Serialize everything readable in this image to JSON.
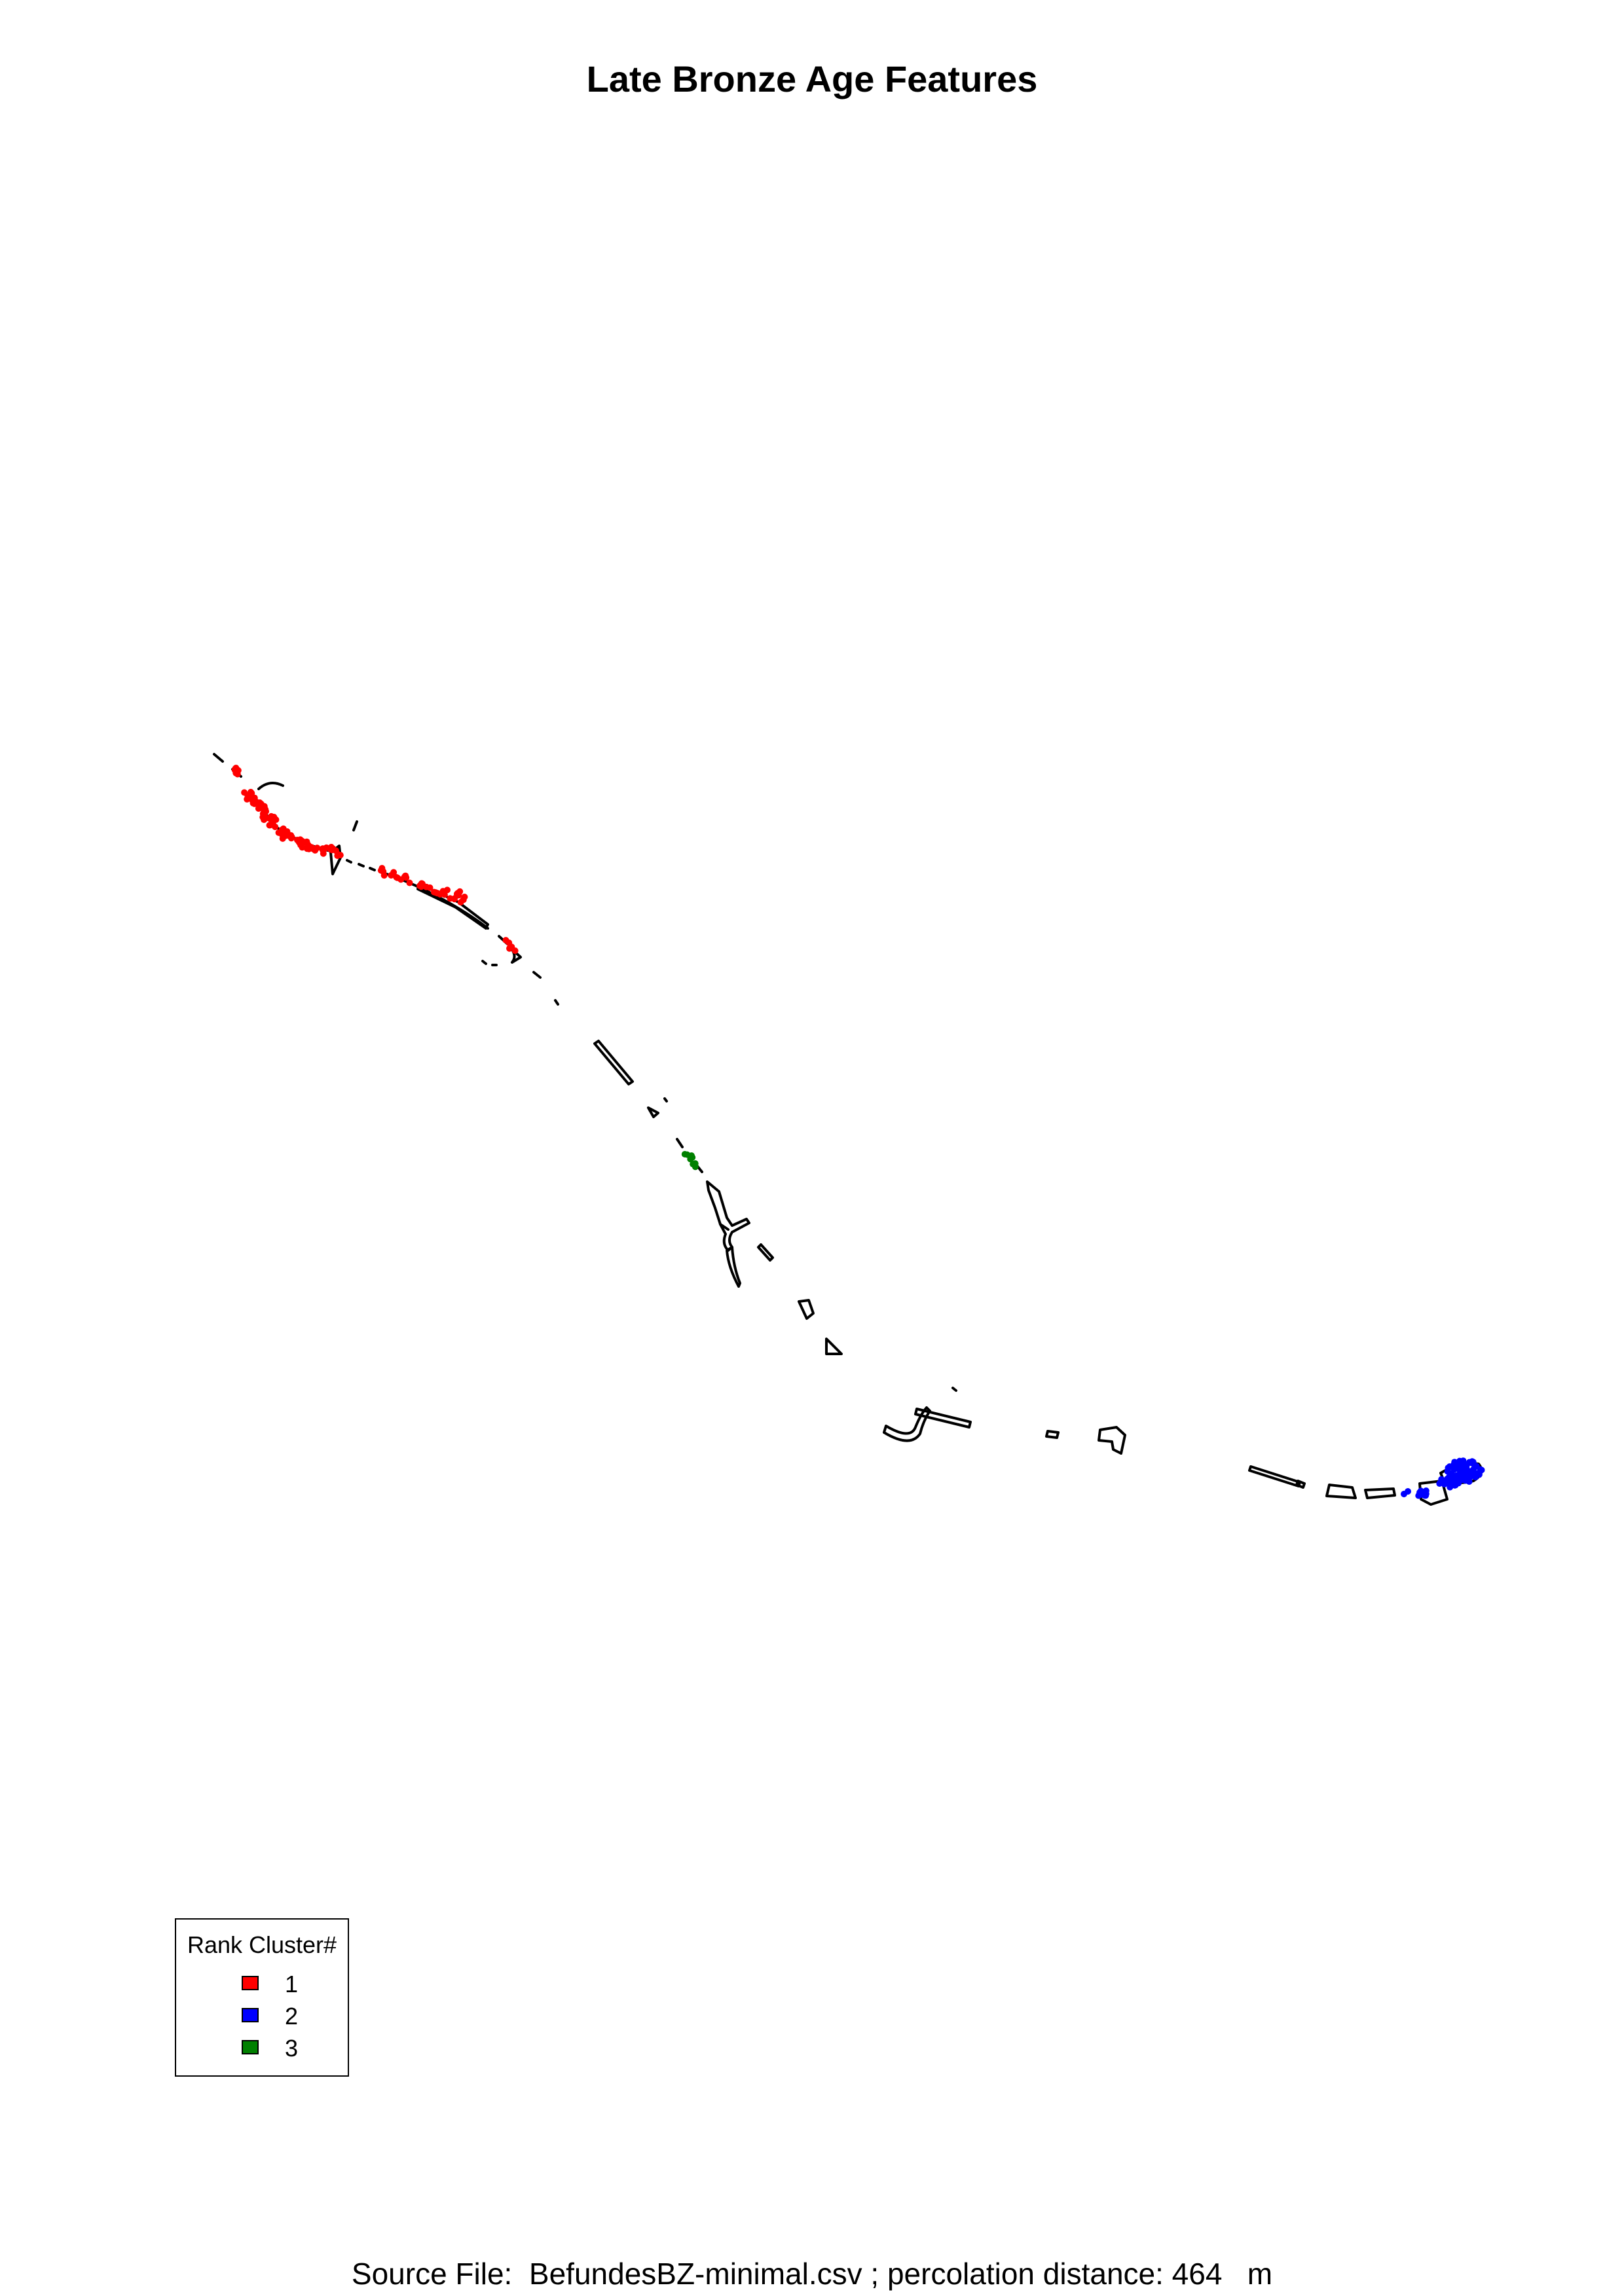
{
  "title": "Late Bronze Age Features",
  "legend": {
    "title": "Rank Cluster#",
    "items": [
      {
        "label": "1",
        "color": "#ff0000"
      },
      {
        "label": "2",
        "color": "#0000ff"
      },
      {
        "label": "3",
        "color": "#008000"
      }
    ]
  },
  "source_line": "Source File:  BefundesBZ-minimal.csv ; percolation distance: 464   m",
  "colors": {
    "cluster_1": "#ff0000",
    "cluster_2": "#0000ff",
    "cluster_3": "#008000",
    "outline": "#000000"
  }
}
